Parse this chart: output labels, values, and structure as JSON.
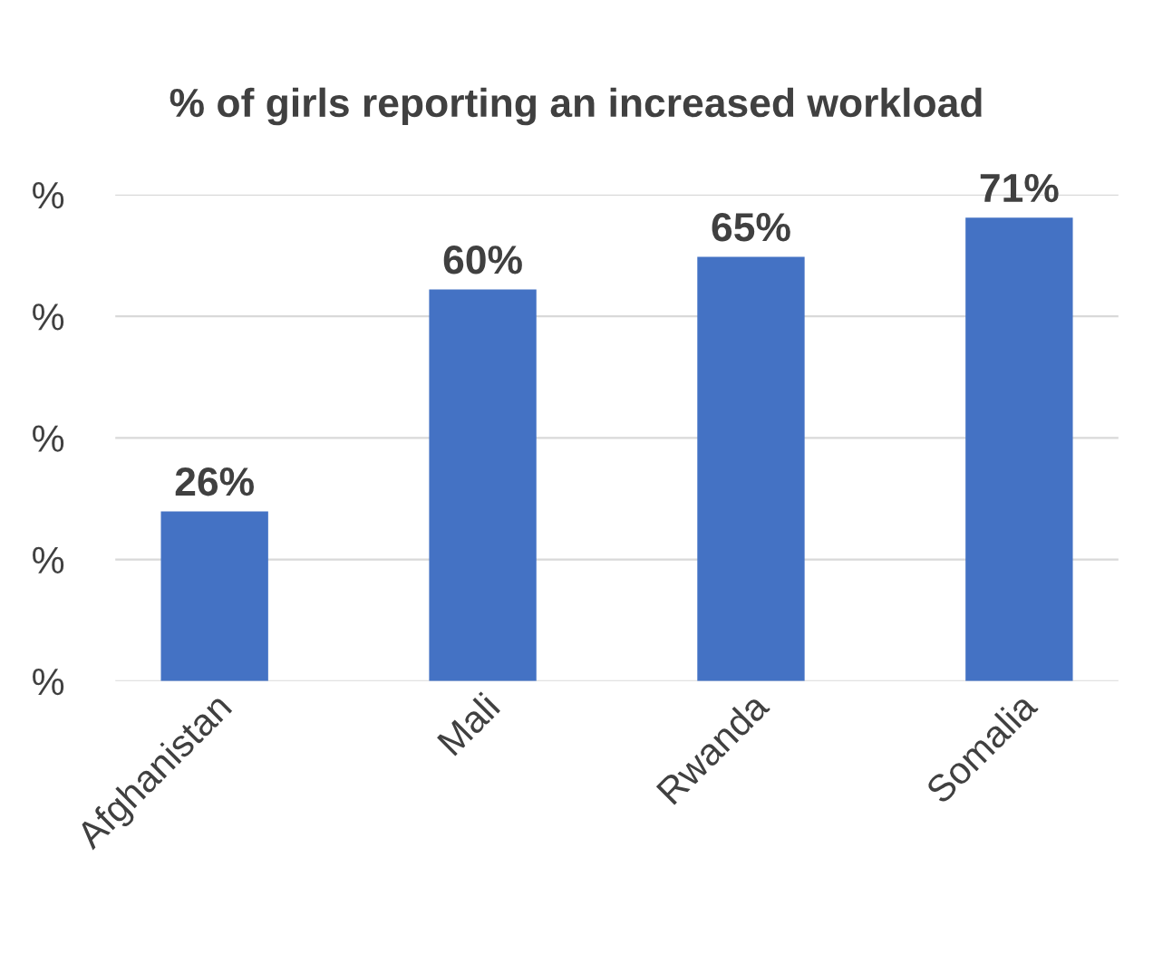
{
  "chart_data": {
    "type": "bar",
    "title": "% of girls reporting an increased workload",
    "categories": [
      "Afghanistan",
      "Mali",
      "Rwanda",
      "Somalia"
    ],
    "values": [
      26,
      60,
      65,
      71
    ],
    "color": "#4472c4",
    "value_labels": [
      "26%",
      "60%",
      "65%",
      "71%"
    ],
    "annotations": [
      "%",
      "%",
      "%",
      "%",
      "%"
    ],
    "grid": "y"
  }
}
